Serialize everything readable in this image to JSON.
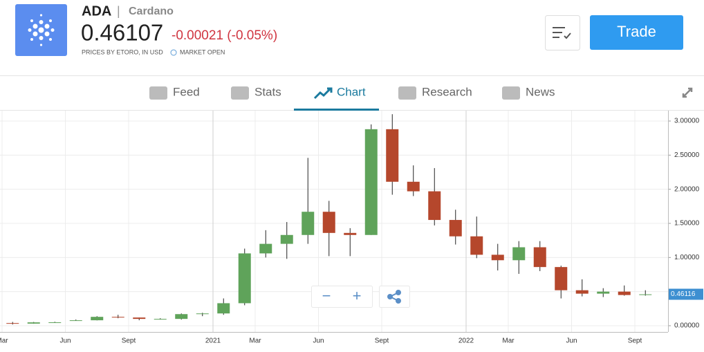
{
  "header": {
    "symbol": "ADA",
    "separator": "|",
    "name": "Cardano",
    "price": "0.46107",
    "change": "-0.00021 (-0.05%)",
    "source": "PRICES BY ETORO, IN USD",
    "status": "MARKET OPEN",
    "trade": "Trade"
  },
  "tabs": [
    "Feed",
    "Stats",
    "Chart",
    "Research",
    "News"
  ],
  "chart_data": {
    "type": "candlestick",
    "x": [
      "2020-03",
      "2020-04",
      "2020-05",
      "2020-06",
      "2020-07",
      "2020-08",
      "2020-09",
      "2020-10",
      "2020-11",
      "2020-12",
      "2021-01",
      "2021-02",
      "2021-03",
      "2021-04",
      "2021-05",
      "2021-06",
      "2021-07",
      "2021-08",
      "2021-09",
      "2021-10",
      "2021-11",
      "2021-12",
      "2022-01",
      "2022-02",
      "2022-03",
      "2022-04",
      "2022-05",
      "2022-06",
      "2022-07",
      "2022-08",
      "2022-09"
    ],
    "open": [
      0.039,
      0.031,
      0.049,
      0.077,
      0.08,
      0.13,
      0.12,
      0.1,
      0.1,
      0.17,
      0.18,
      0.33,
      1.06,
      1.2,
      1.33,
      1.67,
      1.36,
      1.33,
      2.88,
      2.11,
      1.97,
      1.55,
      1.31,
      1.04,
      0.96,
      1.15,
      0.86,
      0.52,
      0.47,
      0.5,
      0.45
    ],
    "high": [
      0.056,
      0.055,
      0.058,
      0.091,
      0.14,
      0.16,
      0.12,
      0.11,
      0.18,
      0.19,
      0.4,
      1.13,
      1.4,
      1.52,
      2.46,
      1.83,
      1.43,
      2.95,
      3.1,
      2.35,
      2.31,
      1.7,
      1.6,
      1.2,
      1.24,
      1.24,
      0.88,
      0.68,
      0.55,
      0.59,
      0.52
    ],
    "low": [
      0.018,
      0.029,
      0.045,
      0.074,
      0.078,
      0.11,
      0.08,
      0.09,
      0.09,
      0.14,
      0.16,
      0.3,
      1.0,
      0.98,
      1.2,
      1.02,
      1.02,
      1.33,
      1.92,
      1.9,
      1.47,
      1.19,
      0.99,
      0.81,
      0.76,
      0.8,
      0.4,
      0.43,
      0.42,
      0.44,
      0.44
    ],
    "close": [
      0.031,
      0.049,
      0.05,
      0.08,
      0.13,
      0.12,
      0.1,
      0.1,
      0.17,
      0.18,
      0.33,
      1.06,
      1.2,
      1.33,
      1.67,
      1.36,
      1.33,
      2.88,
      2.11,
      1.97,
      1.55,
      1.31,
      1.04,
      0.96,
      1.15,
      0.86,
      0.52,
      0.47,
      0.5,
      0.45,
      0.46
    ],
    "up_color": "#5fa35a",
    "down_color": "#b5472c",
    "ylim": [
      0,
      3.15
    ],
    "yticks": [
      {
        "value": 0,
        "label": "0.00000"
      },
      {
        "value": 0.5,
        "label": "0.50000"
      },
      {
        "value": 1,
        "label": "1.00000"
      },
      {
        "value": 1.5,
        "label": "1.50000"
      },
      {
        "value": 2,
        "label": "2.00000"
      },
      {
        "value": 2.5,
        "label": "2.50000"
      },
      {
        "value": 3,
        "label": "3.00000"
      }
    ],
    "xticks": [
      {
        "value": "2020-03",
        "label": "Mar"
      },
      {
        "value": "2020-06",
        "label": "Jun"
      },
      {
        "value": "2020-09",
        "label": "Sept"
      },
      {
        "value": "2021-01",
        "label": "2021"
      },
      {
        "value": "2021-03",
        "label": "Mar"
      },
      {
        "value": "2021-06",
        "label": "Jun"
      },
      {
        "value": "2021-09",
        "label": "Sept"
      },
      {
        "value": "2022-01",
        "label": "2022"
      },
      {
        "value": "2022-03",
        "label": "Mar"
      },
      {
        "value": "2022-06",
        "label": "Jun"
      },
      {
        "value": "2022-09",
        "label": "Sept"
      }
    ],
    "last_price": 0.46116,
    "grid": true
  }
}
